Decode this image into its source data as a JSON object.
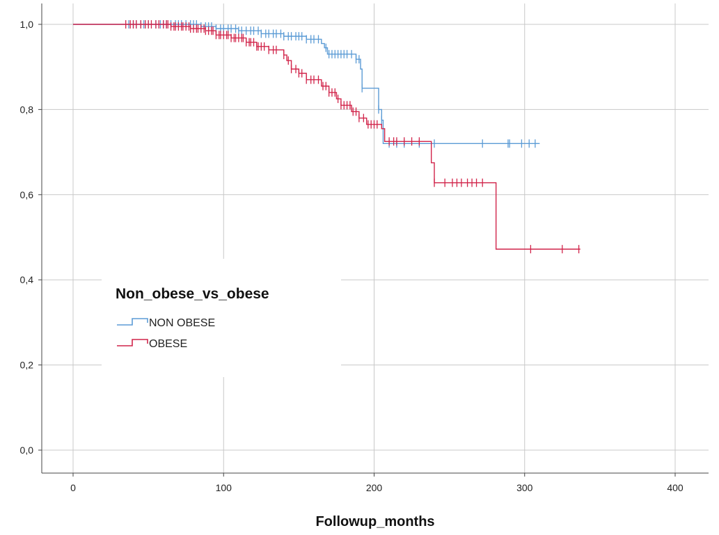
{
  "chart_data": {
    "type": "line",
    "subtype": "kaplan-meier",
    "xlabel": "Followup_months",
    "ylabel": "",
    "xlim": [
      0,
      400
    ],
    "ylim": [
      0.0,
      1.0
    ],
    "x_ticks": [
      0,
      100,
      200,
      300,
      400
    ],
    "x_tick_labels": [
      "0",
      "100",
      "200",
      "300",
      "400"
    ],
    "y_ticks": [
      0.0,
      0.2,
      0.4,
      0.6,
      0.8,
      1.0
    ],
    "y_tick_labels": [
      "0,0",
      "0,2",
      "0,4",
      "0,6",
      "0,8",
      "1,0"
    ],
    "grid": true,
    "legend": {
      "title": "Non_obese_vs_obese",
      "placement": "center-left"
    },
    "series": [
      {
        "name": "NON OBESE",
        "color": "#5b9bd5",
        "steps": [
          [
            0,
            1.0
          ],
          [
            85,
            0.995
          ],
          [
            95,
            0.99
          ],
          [
            110,
            0.985
          ],
          [
            125,
            0.978
          ],
          [
            140,
            0.972
          ],
          [
            155,
            0.965
          ],
          [
            165,
            0.955
          ],
          [
            167,
            0.945
          ],
          [
            169,
            0.93
          ],
          [
            188,
            0.918
          ],
          [
            191,
            0.895
          ],
          [
            192,
            0.85
          ],
          [
            203,
            0.8
          ],
          [
            205,
            0.775
          ],
          [
            206,
            0.72
          ],
          [
            310,
            0.72
          ]
        ],
        "censored": [
          37,
          40,
          42,
          45,
          47,
          50,
          55,
          58,
          60,
          62,
          65,
          68,
          70,
          72,
          75,
          78,
          80,
          82,
          85,
          88,
          90,
          92,
          95,
          98,
          100,
          103,
          105,
          108,
          110,
          112,
          115,
          118,
          120,
          123,
          125,
          128,
          130,
          133,
          135,
          138,
          140,
          143,
          145,
          148,
          150,
          152,
          155,
          158,
          160,
          163,
          168,
          170,
          172,
          174,
          176,
          178,
          180,
          182,
          185,
          188,
          190,
          192,
          203,
          205,
          210,
          215,
          220,
          230,
          240,
          272,
          289,
          290,
          298,
          303,
          307
        ]
      },
      {
        "name": "OBESE",
        "color": "#d1244a",
        "steps": [
          [
            0,
            1.0
          ],
          [
            65,
            0.995
          ],
          [
            78,
            0.99
          ],
          [
            88,
            0.985
          ],
          [
            95,
            0.975
          ],
          [
            105,
            0.968
          ],
          [
            115,
            0.958
          ],
          [
            122,
            0.948
          ],
          [
            130,
            0.94
          ],
          [
            140,
            0.928
          ],
          [
            142,
            0.915
          ],
          [
            145,
            0.895
          ],
          [
            150,
            0.885
          ],
          [
            155,
            0.87
          ],
          [
            165,
            0.855
          ],
          [
            170,
            0.84
          ],
          [
            175,
            0.825
          ],
          [
            178,
            0.81
          ],
          [
            185,
            0.795
          ],
          [
            190,
            0.78
          ],
          [
            195,
            0.765
          ],
          [
            205,
            0.755
          ],
          [
            207,
            0.725
          ],
          [
            237,
            0.725
          ],
          [
            238,
            0.675
          ],
          [
            240,
            0.628
          ],
          [
            280,
            0.628
          ],
          [
            281,
            0.472
          ],
          [
            337,
            0.472
          ]
        ],
        "censored": [
          35,
          38,
          40,
          42,
          45,
          48,
          50,
          52,
          55,
          57,
          60,
          62,
          63,
          65,
          67,
          68,
          70,
          72,
          73,
          75,
          77,
          78,
          80,
          82,
          83,
          85,
          87,
          88,
          90,
          92,
          93,
          95,
          97,
          98,
          100,
          102,
          103,
          105,
          107,
          108,
          110,
          112,
          113,
          115,
          117,
          118,
          120,
          122,
          123,
          125,
          127,
          130,
          133,
          135,
          140,
          143,
          145,
          148,
          150,
          152,
          155,
          158,
          160,
          163,
          166,
          168,
          170,
          172,
          174,
          176,
          178,
          180,
          182,
          184,
          186,
          188,
          190,
          193,
          196,
          198,
          200,
          202,
          210,
          213,
          215,
          220,
          225,
          230,
          240,
          247,
          252,
          255,
          258,
          262,
          265,
          268,
          272,
          304,
          325,
          336
        ]
      }
    ]
  }
}
